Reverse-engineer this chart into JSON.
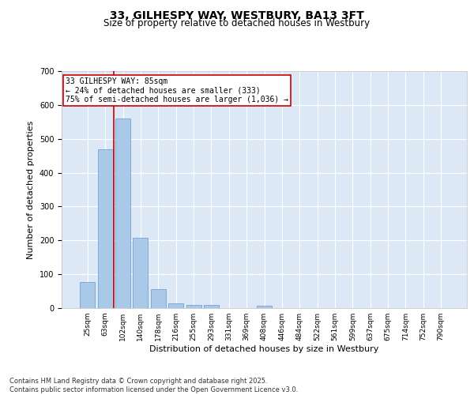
{
  "title_line1": "33, GILHESPY WAY, WESTBURY, BA13 3FT",
  "title_line2": "Size of property relative to detached houses in Westbury",
  "xlabel": "Distribution of detached houses by size in Westbury",
  "ylabel": "Number of detached properties",
  "categories": [
    "25sqm",
    "63sqm",
    "102sqm",
    "140sqm",
    "178sqm",
    "216sqm",
    "255sqm",
    "293sqm",
    "331sqm",
    "369sqm",
    "408sqm",
    "446sqm",
    "484sqm",
    "522sqm",
    "561sqm",
    "599sqm",
    "637sqm",
    "675sqm",
    "714sqm",
    "752sqm",
    "790sqm"
  ],
  "values": [
    78,
    468,
    560,
    207,
    57,
    15,
    10,
    10,
    0,
    0,
    8,
    0,
    0,
    0,
    0,
    0,
    0,
    0,
    0,
    0,
    0
  ],
  "bar_color": "#aac8e8",
  "bar_edge_color": "#6699cc",
  "background_color": "#dce8f5",
  "grid_color": "#ffffff",
  "vline_x": 1.5,
  "vline_color": "#cc0000",
  "annotation_text": "33 GILHESPY WAY: 85sqm\n← 24% of detached houses are smaller (333)\n75% of semi-detached houses are larger (1,036) →",
  "annotation_box_color": "#cc0000",
  "annotation_box_bg": "#ffffff",
  "ylim": [
    0,
    700
  ],
  "yticks": [
    0,
    100,
    200,
    300,
    400,
    500,
    600,
    700
  ],
  "footer_text": "Contains HM Land Registry data © Crown copyright and database right 2025.\nContains public sector information licensed under the Open Government Licence v3.0.",
  "title_fontsize": 10,
  "subtitle_fontsize": 8.5,
  "tick_fontsize": 6.5,
  "ylabel_fontsize": 8,
  "xlabel_fontsize": 8,
  "annotation_fontsize": 7,
  "footer_fontsize": 6
}
